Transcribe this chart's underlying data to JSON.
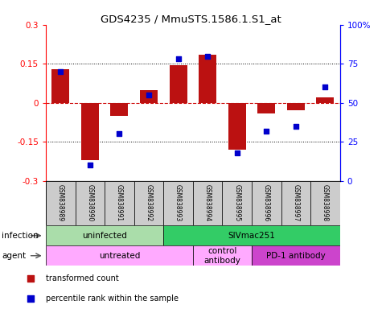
{
  "title": "GDS4235 / MmuSTS.1586.1.S1_at",
  "samples": [
    "GSM838989",
    "GSM838990",
    "GSM838991",
    "GSM838992",
    "GSM838993",
    "GSM838994",
    "GSM838995",
    "GSM838996",
    "GSM838997",
    "GSM838998"
  ],
  "transformed_count": [
    0.13,
    -0.22,
    -0.05,
    0.05,
    0.145,
    0.185,
    -0.18,
    -0.04,
    -0.03,
    0.02
  ],
  "percentile_rank": [
    70,
    10,
    30,
    55,
    78,
    80,
    18,
    32,
    35,
    60
  ],
  "ylim_left": [
    -0.3,
    0.3
  ],
  "ylim_right": [
    0,
    100
  ],
  "yticks_left": [
    -0.3,
    -0.15,
    0,
    0.15,
    0.3
  ],
  "yticks_right": [
    0,
    25,
    50,
    75,
    100
  ],
  "ytick_labels_right": [
    "0",
    "25",
    "50",
    "75",
    "100%"
  ],
  "hlines": [
    0.15,
    -0.15
  ],
  "bar_color": "#bb1111",
  "scatter_color": "#0000cc",
  "bg_color": "#ffffff",
  "infection_groups": [
    {
      "label": "uninfected",
      "start": 0,
      "end": 3,
      "color": "#aaddaa"
    },
    {
      "label": "SIVmac251",
      "start": 4,
      "end": 9,
      "color": "#33cc66"
    }
  ],
  "agent_groups": [
    {
      "label": "untreated",
      "start": 0,
      "end": 4,
      "color": "#ffaaff"
    },
    {
      "label": "control\nantibody",
      "start": 5,
      "end": 6,
      "color": "#ffaaff"
    },
    {
      "label": "PD-1 antibody",
      "start": 7,
      "end": 9,
      "color": "#cc44cc"
    }
  ],
  "legend_items": [
    {
      "label": "transformed count",
      "color": "#bb1111"
    },
    {
      "label": "percentile rank within the sample",
      "color": "#0000cc"
    }
  ],
  "dotted_line_color": "#000000",
  "zero_line_color": "#cc0000",
  "row_label_infection": "infection",
  "row_label_agent": "agent"
}
